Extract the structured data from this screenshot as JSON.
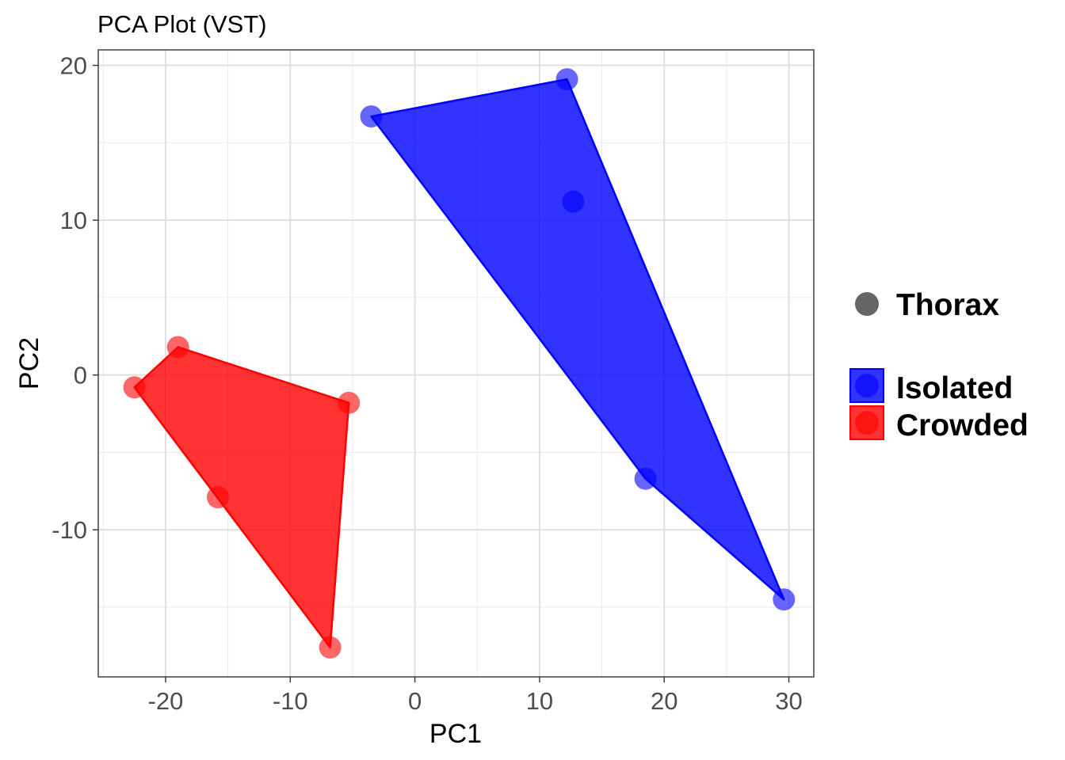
{
  "chart_data": {
    "type": "scatter",
    "title": "PCA Plot (VST)",
    "xlabel": "PC1",
    "ylabel": "PC2",
    "xlim": [
      -25.4,
      32.0
    ],
    "ylim": [
      -19.5,
      21.0
    ],
    "x_ticks": [
      -20,
      -10,
      0,
      10,
      20,
      30
    ],
    "y_ticks": [
      -10,
      0,
      10,
      20
    ],
    "x_tick_labels": [
      "-20",
      "-10",
      "0",
      "10",
      "20",
      "30"
    ],
    "y_tick_labels": [
      "-10",
      "0",
      "10",
      "20"
    ],
    "grid": true,
    "hull": true,
    "legend_position": "right",
    "shape_legend": {
      "label": "Thorax",
      "color": "#666666"
    },
    "series": [
      {
        "name": "Isolated",
        "color": "#0000ff",
        "points": [
          {
            "x": -3.5,
            "y": 16.7
          },
          {
            "x": 12.2,
            "y": 19.1
          },
          {
            "x": 12.7,
            "y": 11.2
          },
          {
            "x": 18.5,
            "y": -6.7
          },
          {
            "x": 29.6,
            "y": -14.5
          }
        ]
      },
      {
        "name": "Crowded",
        "color": "#ff0000",
        "points": [
          {
            "x": -22.5,
            "y": -0.8
          },
          {
            "x": -19.0,
            "y": 1.8
          },
          {
            "x": -15.8,
            "y": -7.9
          },
          {
            "x": -5.3,
            "y": -1.8
          },
          {
            "x": -6.8,
            "y": -17.6
          }
        ]
      }
    ]
  }
}
